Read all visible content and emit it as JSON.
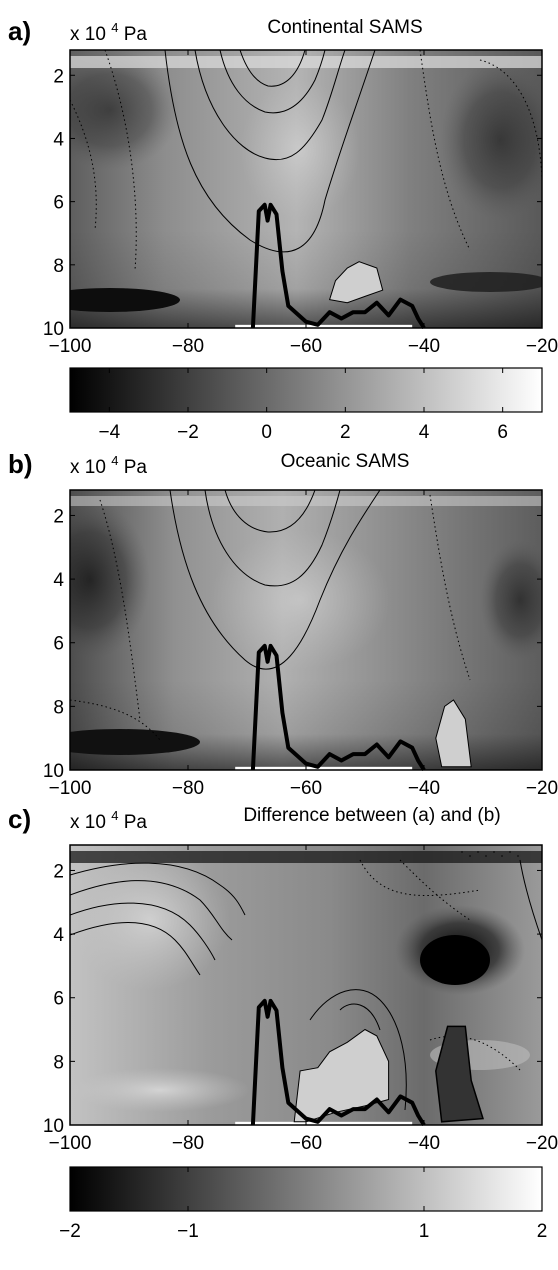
{
  "chart_data": [
    {
      "type": "heatmap",
      "panel_label": "a)",
      "title": "Continental SAMS",
      "ylabel": "x 10",
      "ylabel_exponent": "4",
      "ylabel_unit": "Pa",
      "x_ticks": [
        "−100",
        "−80",
        "−60",
        "−40",
        "−20"
      ],
      "x_values": [
        -100,
        -80,
        -60,
        -40,
        -20
      ],
      "y_ticks": [
        "2",
        "4",
        "6",
        "8",
        "10"
      ],
      "y_values": [
        2,
        4,
        6,
        8,
        10
      ],
      "xlim": [
        -100,
        -20
      ],
      "ylim": [
        1.2,
        10
      ],
      "y_reversed": true,
      "colorbar": {
        "ticks": [
          "−4",
          "−2",
          "0",
          "2",
          "4",
          "6"
        ],
        "values": [
          -4,
          -2,
          0,
          2,
          4,
          6
        ],
        "range": [
          -5,
          7
        ],
        "colormap": "gray"
      },
      "topography": [
        [
          -69,
          10
        ],
        [
          -68,
          6.3
        ],
        [
          -67,
          6.1
        ],
        [
          -66.5,
          6.6
        ],
        [
          -66,
          6.1
        ],
        [
          -65,
          6.4
        ],
        [
          -64,
          8.2
        ],
        [
          -63,
          9.3
        ],
        [
          -60,
          9.8
        ],
        [
          -58,
          9.9
        ],
        [
          -56,
          9.5
        ],
        [
          -54,
          9.7
        ],
        [
          -52,
          9.5
        ],
        [
          -50,
          9.5
        ],
        [
          -48,
          9.2
        ],
        [
          -46,
          9.6
        ],
        [
          -44,
          9.1
        ],
        [
          -42,
          9.3
        ],
        [
          -41,
          9.7
        ],
        [
          -40,
          10
        ]
      ],
      "highlight_region": [
        [
          -56,
          9.1
        ],
        [
          -55,
          8.5
        ],
        [
          -53,
          8.1
        ],
        [
          -51,
          7.9
        ],
        [
          -48,
          8.1
        ],
        [
          -47,
          8.8
        ],
        [
          -50,
          9.0
        ],
        [
          -53,
          9.2
        ],
        [
          -56,
          9.1
        ]
      ]
    },
    {
      "type": "heatmap",
      "panel_label": "b)",
      "title": "Oceanic SAMS",
      "ylabel": "x 10",
      "ylabel_exponent": "4",
      "ylabel_unit": "Pa",
      "x_ticks": [
        "−100",
        "−80",
        "−60",
        "−40",
        "−20"
      ],
      "x_values": [
        -100,
        -80,
        -60,
        -40,
        -20
      ],
      "y_ticks": [
        "2",
        "4",
        "6",
        "8",
        "10"
      ],
      "y_values": [
        2,
        4,
        6,
        8,
        10
      ],
      "xlim": [
        -100,
        -20
      ],
      "ylim": [
        1.2,
        10
      ],
      "y_reversed": true,
      "topography": [
        [
          -69,
          10
        ],
        [
          -68,
          6.3
        ],
        [
          -67,
          6.1
        ],
        [
          -66.5,
          6.6
        ],
        [
          -66,
          6.1
        ],
        [
          -65,
          6.4
        ],
        [
          -64,
          8.2
        ],
        [
          -63,
          9.3
        ],
        [
          -60,
          9.8
        ],
        [
          -58,
          9.9
        ],
        [
          -56,
          9.5
        ],
        [
          -54,
          9.7
        ],
        [
          -52,
          9.5
        ],
        [
          -50,
          9.5
        ],
        [
          -48,
          9.2
        ],
        [
          -46,
          9.6
        ],
        [
          -44,
          9.1
        ],
        [
          -42,
          9.3
        ],
        [
          -41,
          9.7
        ],
        [
          -40,
          10
        ]
      ],
      "highlight_region": [
        [
          -37,
          9.9
        ],
        [
          -38,
          9.0
        ],
        [
          -36.5,
          8.0
        ],
        [
          -35,
          7.8
        ],
        [
          -33,
          8.4
        ],
        [
          -32,
          9.9
        ],
        [
          -37,
          9.9
        ]
      ]
    },
    {
      "type": "heatmap",
      "panel_label": "c)",
      "title": "Difference between (a) and (b)",
      "ylabel": "x 10",
      "ylabel_exponent": "4",
      "ylabel_unit": "Pa",
      "x_ticks": [
        "−100",
        "−80",
        "−60",
        "−40",
        "−20"
      ],
      "x_values": [
        -100,
        -80,
        -60,
        -40,
        -20
      ],
      "y_ticks": [
        "2",
        "4",
        "6",
        "8",
        "10"
      ],
      "y_values": [
        2,
        4,
        6,
        8,
        10
      ],
      "xlim": [
        -100,
        -20
      ],
      "ylim": [
        1.2,
        10
      ],
      "y_reversed": true,
      "colorbar": {
        "ticks": [
          "−2",
          "−1",
          "1",
          "2"
        ],
        "values": [
          -2,
          -1,
          1,
          2
        ],
        "range": [
          -2,
          2
        ],
        "colormap": "gray"
      },
      "topography": [
        [
          -69,
          10
        ],
        [
          -68,
          6.3
        ],
        [
          -67,
          6.1
        ],
        [
          -66.5,
          6.6
        ],
        [
          -66,
          6.1
        ],
        [
          -65,
          6.4
        ],
        [
          -64,
          8.2
        ],
        [
          -63,
          9.3
        ],
        [
          -60,
          9.8
        ],
        [
          -58,
          9.9
        ],
        [
          -56,
          9.5
        ],
        [
          -54,
          9.7
        ],
        [
          -52,
          9.5
        ],
        [
          -50,
          9.5
        ],
        [
          -48,
          9.2
        ],
        [
          -46,
          9.6
        ],
        [
          -44,
          9.1
        ],
        [
          -42,
          9.3
        ],
        [
          -41,
          9.7
        ],
        [
          -40,
          10
        ]
      ],
      "highlight_region": [
        [
          -62,
          9.9
        ],
        [
          -61,
          8.3
        ],
        [
          -58,
          8.2
        ],
        [
          -56,
          7.7
        ],
        [
          -53,
          7.4
        ],
        [
          -50,
          7.0
        ],
        [
          -48,
          7.2
        ],
        [
          -46,
          8.0
        ],
        [
          -46,
          9.2
        ],
        [
          -50,
          9.4
        ],
        [
          -55,
          9.6
        ],
        [
          -60,
          9.9
        ],
        [
          -62,
          9.9
        ]
      ],
      "dark_region": [
        [
          -37,
          9.9
        ],
        [
          -38,
          8.3
        ],
        [
          -36,
          6.9
        ],
        [
          -33,
          6.9
        ],
        [
          -32,
          8.6
        ],
        [
          -30,
          9.8
        ],
        [
          -37,
          9.9
        ]
      ]
    }
  ]
}
